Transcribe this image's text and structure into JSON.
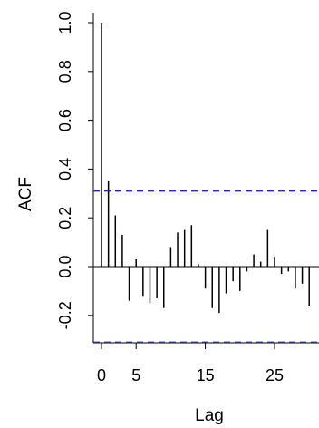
{
  "chart_data": {
    "type": "bar",
    "title": "",
    "xlabel": "Lag",
    "ylabel": "ACF",
    "xlim": [
      -0.5,
      31
    ],
    "ylim": [
      -0.32,
      1.0
    ],
    "x_ticks": [
      0,
      5,
      15,
      25
    ],
    "x_tick_labels": [
      "0",
      "5",
      "15",
      "25"
    ],
    "y_ticks": [
      1.0,
      0.8,
      0.6,
      0.4,
      0.2,
      0.0,
      -0.2
    ],
    "y_tick_labels": [
      "1.0",
      "0.8",
      "0.6",
      "0.4",
      "0.2",
      "0.0",
      "-0.2"
    ],
    "lags": [
      0,
      1,
      2,
      3,
      4,
      5,
      6,
      7,
      8,
      9,
      10,
      11,
      12,
      13,
      14,
      15,
      16,
      17,
      18,
      19,
      20,
      21,
      22,
      23,
      24,
      25,
      26,
      27,
      28,
      29,
      30
    ],
    "values": [
      1.0,
      0.35,
      0.21,
      0.13,
      -0.14,
      0.03,
      -0.12,
      -0.15,
      -0.13,
      -0.17,
      0.08,
      0.14,
      0.15,
      0.17,
      0.01,
      -0.09,
      -0.17,
      -0.19,
      -0.11,
      -0.06,
      -0.1,
      -0.02,
      0.05,
      0.02,
      0.15,
      0.04,
      -0.03,
      -0.02,
      -0.09,
      -0.07,
      -0.16
    ],
    "confidence_bound": 0.31,
    "bound_color": "#1f1fd6",
    "bar_color": "#000000",
    "grid": false
  }
}
